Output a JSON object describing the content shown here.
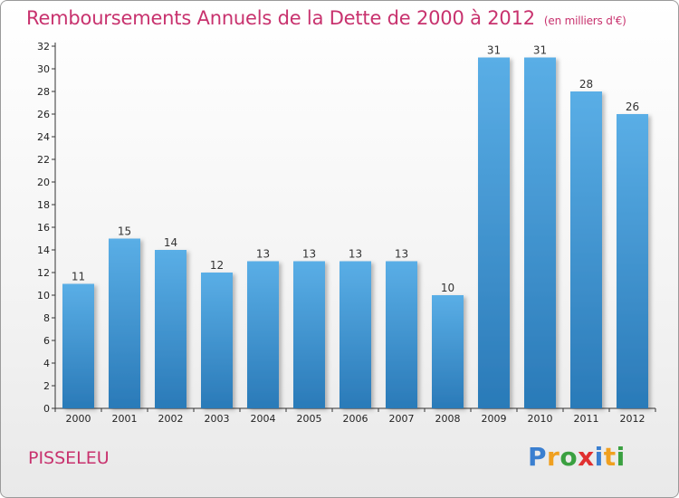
{
  "header": {
    "title": "Remboursements Annuels de la Dette de 2000 à 2012",
    "unit": "(en milliers d'€)"
  },
  "footer": {
    "place": "PISSELEU",
    "logo": "Proxiti"
  },
  "colors": {
    "title": "#c8326e",
    "bar_top": "#5aaee6",
    "bar_bottom": "#2a7ab8",
    "logo_letters": [
      "#3a7fd0",
      "#f0a020",
      "#3aa040",
      "#e03030",
      "#3a7fd0",
      "#f0a020",
      "#3aa040"
    ]
  },
  "chart_data": {
    "type": "bar",
    "categories": [
      "2000",
      "2001",
      "2002",
      "2003",
      "2004",
      "2005",
      "2006",
      "2007",
      "2008",
      "2009",
      "2010",
      "2011",
      "2012"
    ],
    "values": [
      11,
      15,
      14,
      12,
      13,
      13,
      13,
      13,
      10,
      31,
      31,
      28,
      26
    ],
    "title": "Remboursements Annuels de la Dette de 2000 à 2012",
    "ylim": [
      0,
      32
    ],
    "yticks": [
      0,
      2,
      4,
      6,
      8,
      10,
      12,
      14,
      16,
      18,
      20,
      22,
      24,
      26,
      28,
      30,
      32
    ],
    "grid": false
  }
}
